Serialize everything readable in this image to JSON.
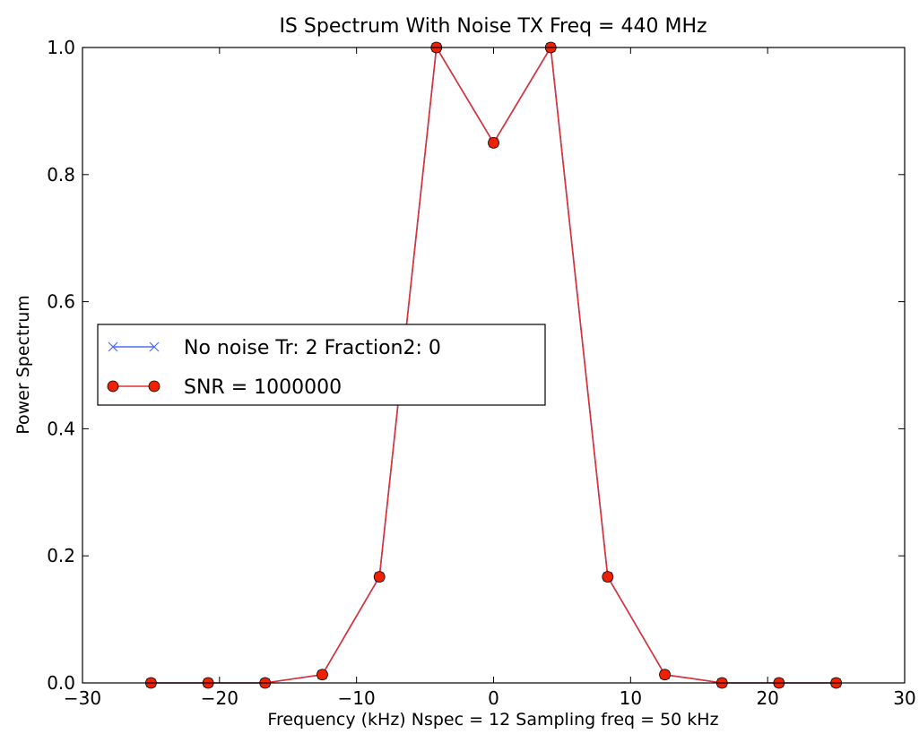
{
  "chart_data": {
    "type": "line",
    "title": "IS Spectrum With Noise  TX Freq = 440 MHz",
    "xlabel": "Frequency (kHz)  Nspec = 12  Sampling freq = 50 kHz",
    "ylabel": "Power Spectrum",
    "xlim": [
      -30,
      30
    ],
    "ylim": [
      0,
      1
    ],
    "xticks": [
      -30,
      -20,
      -10,
      0,
      10,
      20,
      30
    ],
    "xtick_labels": [
      "−30",
      "−20",
      "−10",
      "0",
      "10",
      "20",
      "30"
    ],
    "yticks": [
      0,
      0.2,
      0.4,
      0.6,
      0.8,
      1.0
    ],
    "ytick_labels": [
      "0.0",
      "0.2",
      "0.4",
      "0.6",
      "0.8",
      "1.0"
    ],
    "grid": false,
    "legend_position": "center-left",
    "x": [
      -25,
      -20.83,
      -16.67,
      -12.5,
      -8.33,
      -4.17,
      0,
      4.17,
      8.33,
      12.5,
      16.67,
      20.83,
      25
    ],
    "series": [
      {
        "name": "No noise Tr: 2  Fraction2: 0",
        "color": "#4c6ef5",
        "marker": "x",
        "values": [
          0.0,
          0.0,
          0.0,
          0.013,
          0.167,
          1.0,
          0.85,
          1.0,
          0.167,
          0.013,
          0.0,
          0.0,
          0.0
        ]
      },
      {
        "name": "SNR = 1000000",
        "color": "#dd3333",
        "marker_color": "#ee2200",
        "marker": "o",
        "values": [
          0.0,
          0.0,
          0.0,
          0.013,
          0.167,
          1.0,
          0.85,
          1.0,
          0.167,
          0.013,
          0.0,
          0.0,
          0.0
        ]
      }
    ]
  }
}
